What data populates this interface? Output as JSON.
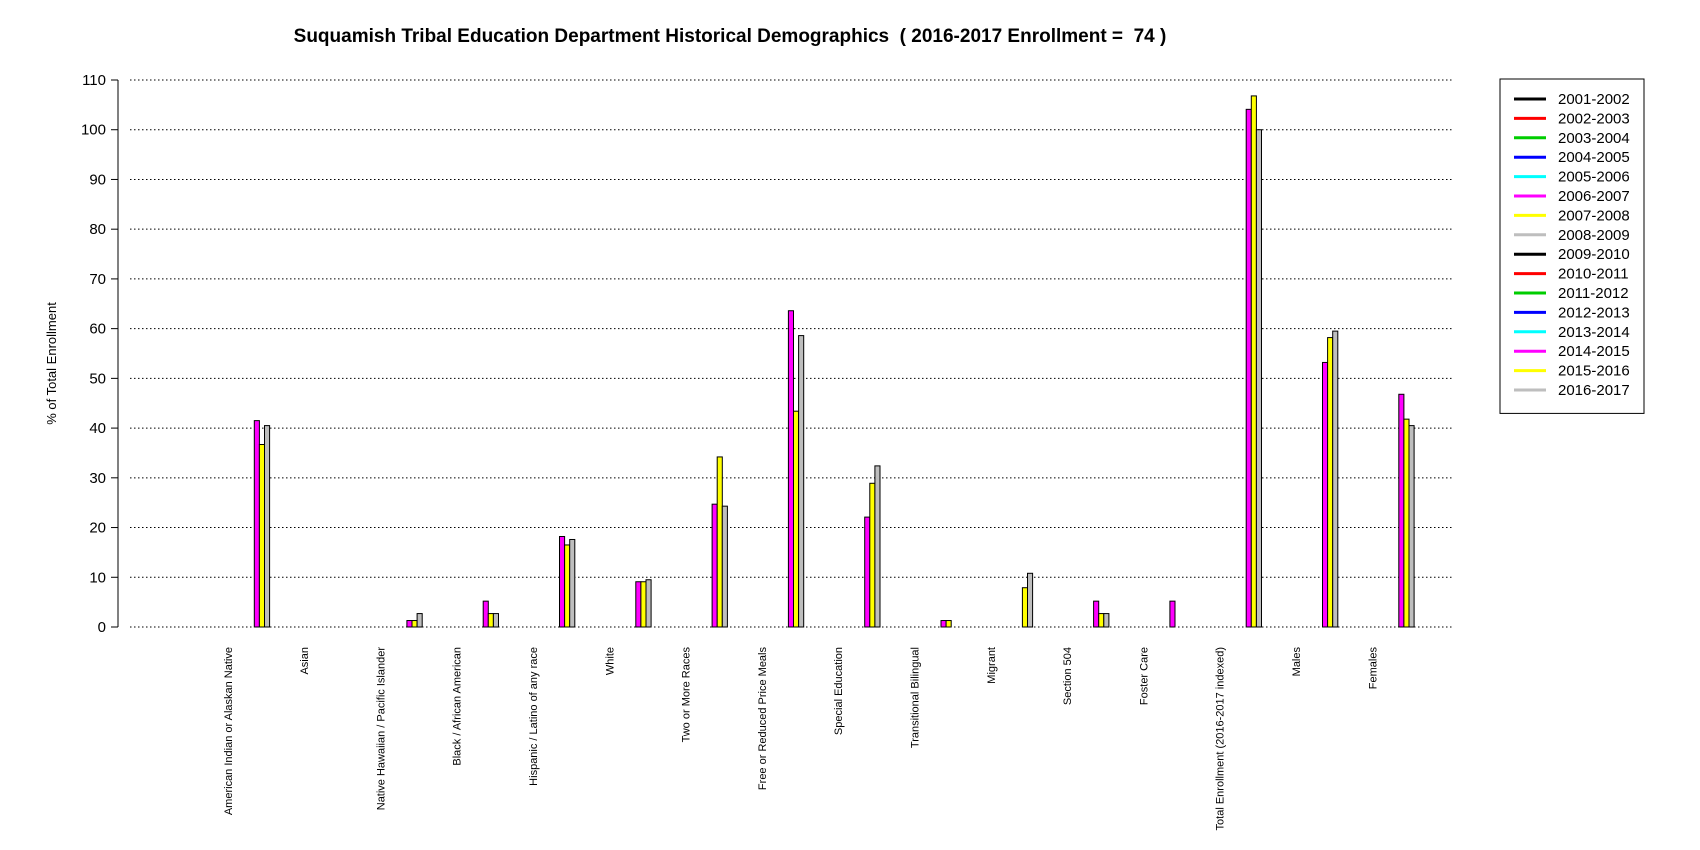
{
  "chart_data": {
    "type": "bar",
    "title": "Suquamish Tribal Education Department Historical Demographics  ( 2016-2017 Enrollment =  74 )",
    "xlabel": "",
    "ylabel": "% of Total Enrollment",
    "ylim": [
      0,
      110
    ],
    "yticks": [
      0,
      10,
      20,
      30,
      40,
      50,
      60,
      70,
      80,
      90,
      100,
      110
    ],
    "grid": "horizontal dotted",
    "legend_position": "right",
    "categories": [
      "American Indian or Alaskan Native",
      "Asian",
      "Native Hawaiian / Pacific Islander",
      "Black / African American",
      "Hispanic / Latino of any race",
      "White",
      "Two or More Races",
      "Free or Reduced Price Meals",
      "Special Education",
      "Transitional Bilingual",
      "Migrant",
      "Section 504",
      "Foster Care",
      "Total Enrollment (2016-2017 indexed)",
      "Males",
      "Females"
    ],
    "series": [
      {
        "name": "2001-2002",
        "color": "#000000",
        "values": [
          0,
          0,
          0,
          0,
          0,
          0,
          0,
          0,
          0,
          0,
          0,
          0,
          0,
          0,
          0,
          0
        ]
      },
      {
        "name": "2002-2003",
        "color": "#ff0000",
        "values": [
          0,
          0,
          0,
          0,
          0,
          0,
          0,
          0,
          0,
          0,
          0,
          0,
          0,
          0,
          0,
          0
        ]
      },
      {
        "name": "2003-2004",
        "color": "#00cd00",
        "values": [
          0,
          0,
          0,
          0,
          0,
          0,
          0,
          0,
          0,
          0,
          0,
          0,
          0,
          0,
          0,
          0
        ]
      },
      {
        "name": "2004-2005",
        "color": "#0000ff",
        "values": [
          0,
          0,
          0,
          0,
          0,
          0,
          0,
          0,
          0,
          0,
          0,
          0,
          0,
          0,
          0,
          0
        ]
      },
      {
        "name": "2005-2006",
        "color": "#00ffff",
        "values": [
          0,
          0,
          0,
          0,
          0,
          0,
          0,
          0,
          0,
          0,
          0,
          0,
          0,
          0,
          0,
          0
        ]
      },
      {
        "name": "2006-2007",
        "color": "#ff00ff",
        "values": [
          0,
          0,
          0,
          0,
          0,
          0,
          0,
          0,
          0,
          0,
          0,
          0,
          0,
          0,
          0,
          0
        ]
      },
      {
        "name": "2007-2008",
        "color": "#ffff00",
        "values": [
          0,
          0,
          0,
          0,
          0,
          0,
          0,
          0,
          0,
          0,
          0,
          0,
          0,
          0,
          0,
          0
        ]
      },
      {
        "name": "2008-2009",
        "color": "#bebebe",
        "values": [
          0,
          0,
          0,
          0,
          0,
          0,
          0,
          0,
          0,
          0,
          0,
          0,
          0,
          0,
          0,
          0
        ]
      },
      {
        "name": "2009-2010",
        "color": "#000000",
        "values": [
          0,
          0,
          0,
          0,
          0,
          0,
          0,
          0,
          0,
          0,
          0,
          0,
          0,
          0,
          0,
          0
        ]
      },
      {
        "name": "2010-2011",
        "color": "#ff0000",
        "values": [
          0,
          0,
          0,
          0,
          0,
          0,
          0,
          0,
          0,
          0,
          0,
          0,
          0,
          0,
          0,
          0
        ]
      },
      {
        "name": "2011-2012",
        "color": "#00cd00",
        "values": [
          0,
          0,
          0,
          0,
          0,
          0,
          0,
          0,
          0,
          0,
          0,
          0,
          0,
          0,
          0,
          0
        ]
      },
      {
        "name": "2012-2013",
        "color": "#0000ff",
        "values": [
          0,
          0,
          0,
          0,
          0,
          0,
          0,
          0,
          0,
          0,
          0,
          0,
          0,
          0,
          0,
          0
        ]
      },
      {
        "name": "2013-2014",
        "color": "#00ffff",
        "values": [
          0,
          0,
          0,
          0,
          0,
          0,
          0,
          0,
          0,
          0,
          0,
          0,
          0,
          0,
          0,
          0
        ]
      },
      {
        "name": "2014-2015",
        "color": "#ff00ff",
        "values": [
          41.5,
          0,
          1.3,
          5.2,
          18.2,
          9.1,
          24.7,
          63.6,
          22.1,
          1.3,
          0,
          5.2,
          5.2,
          104.1,
          53.2,
          46.8
        ]
      },
      {
        "name": "2015-2016",
        "color": "#ffff00",
        "values": [
          36.7,
          0,
          1.3,
          2.7,
          16.5,
          9.1,
          34.2,
          43.4,
          28.9,
          1.3,
          7.9,
          2.7,
          0,
          106.8,
          58.2,
          41.8
        ]
      },
      {
        "name": "2016-2017",
        "color": "#bebebe",
        "values": [
          40.5,
          0,
          2.7,
          2.7,
          17.6,
          9.5,
          24.3,
          58.6,
          32.4,
          0,
          10.8,
          2.7,
          0,
          100,
          59.5,
          40.5
        ]
      }
    ]
  }
}
